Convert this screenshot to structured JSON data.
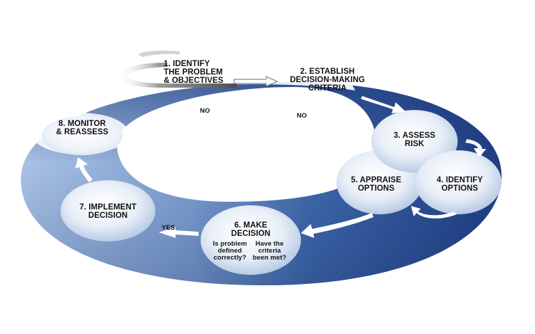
{
  "diagram": {
    "steps": {
      "s1": "1. IDENTIFY\nTHE PROBLEM\n& OBJECTIVES",
      "s2": "2. ESTABLISH\nDECISION-MAKING\nCRITERIA",
      "s3": "3. ASSESS\nRISK",
      "s4": "4. IDENTIFY\nOPTIONS",
      "s5": "5. APPRAISE\nOPTIONS",
      "s6": "6. MAKE\nDECISION",
      "s7": "7. IMPLEMENT\nDECISION",
      "s8": "8. MONITOR\n& REASSESS"
    },
    "questions": {
      "q1": "Is problem\ndefined\ncorrectly?",
      "q2": "Have the\ncriteria\nbeen met?"
    },
    "branches": {
      "no_left": "NO",
      "no_right": "NO",
      "yes": "YES"
    },
    "colors": {
      "ring_dark": "#1e3f86",
      "ring_mid": "#3b67a8",
      "ring_light": "#8fb0d9",
      "bubble": "#e8eef7",
      "arrow_white": "#ffffff",
      "start_grey": "#6d6d6d"
    }
  }
}
